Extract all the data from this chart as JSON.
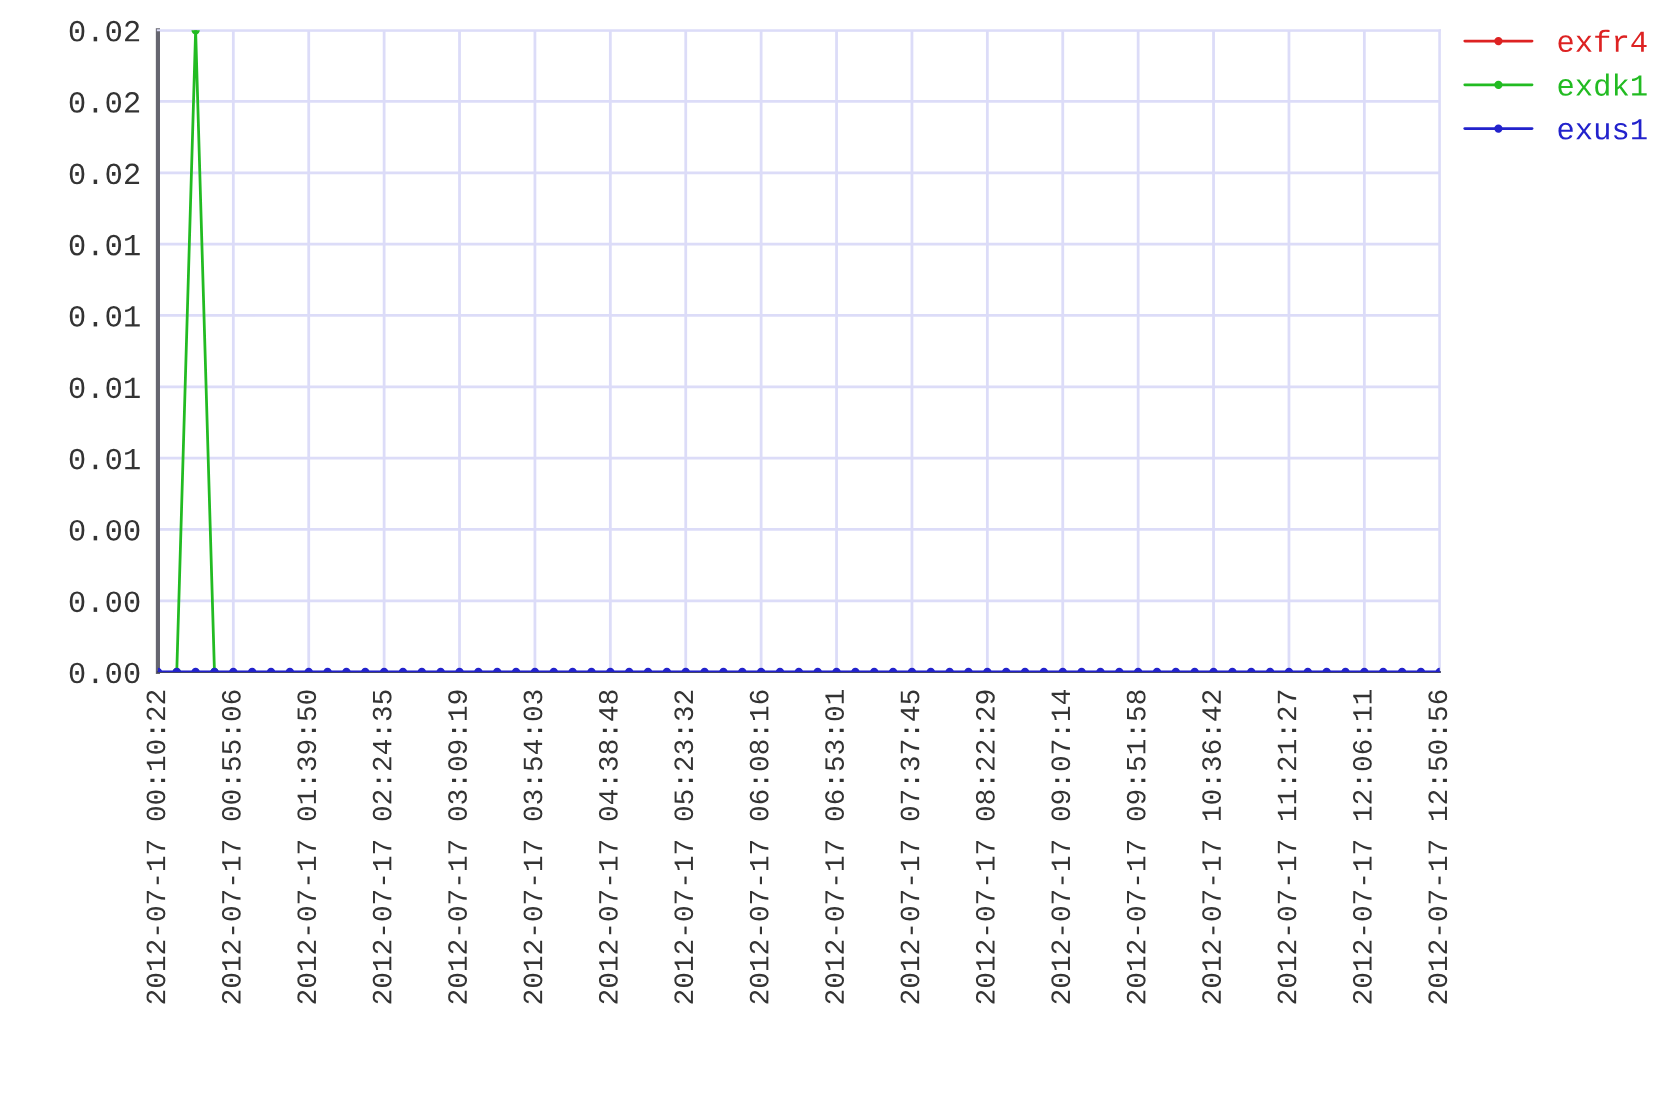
{
  "chart_data": {
    "type": "line",
    "categories": [
      "2012-07-17 00:10:22",
      null,
      null,
      null,
      "2012-07-17 00:55:06",
      null,
      null,
      null,
      "2012-07-17 01:39:50",
      null,
      null,
      null,
      "2012-07-17 02:24:35",
      null,
      null,
      null,
      "2012-07-17 03:09:19",
      null,
      null,
      null,
      "2012-07-17 03:54:03",
      null,
      null,
      null,
      "2012-07-17 04:38:48",
      null,
      null,
      null,
      "2012-07-17 05:23:32",
      null,
      null,
      null,
      "2012-07-17 06:08:16",
      null,
      null,
      null,
      "2012-07-17 06:53:01",
      null,
      null,
      null,
      "2012-07-17 07:37:45",
      null,
      null,
      null,
      "2012-07-17 08:22:29",
      null,
      null,
      null,
      "2012-07-17 09:07:14",
      null,
      null,
      null,
      "2012-07-17 09:51:58",
      null,
      null,
      null,
      "2012-07-17 10:36:42",
      null,
      null,
      null,
      "2012-07-17 11:21:27",
      null,
      null,
      null,
      "2012-07-17 12:06:11",
      null,
      null,
      null,
      "2012-07-17 12:50:56"
    ],
    "series": [
      {
        "name": "exfr4",
        "color": "#dd2222",
        "values": [
          null,
          null,
          null,
          null,
          null,
          null,
          null,
          null,
          null,
          null,
          null,
          null,
          null,
          null,
          null,
          null,
          null,
          null,
          null,
          null,
          null,
          null,
          null,
          null,
          null,
          null,
          null,
          null,
          null,
          null,
          null,
          null,
          null,
          null,
          null,
          null,
          null,
          null,
          null,
          null,
          null,
          null,
          null,
          null,
          null,
          null,
          null,
          null,
          null,
          null,
          null,
          null,
          null,
          null,
          null,
          null,
          null,
          null,
          null,
          null,
          null,
          null,
          null,
          null,
          null,
          null,
          null,
          null,
          null
        ]
      },
      {
        "name": "exdk1",
        "color": "#22bb22",
        "values": [
          null,
          0,
          0.021,
          0,
          null,
          null,
          null,
          null,
          null,
          null,
          null,
          null,
          null,
          null,
          null,
          null,
          null,
          null,
          null,
          null,
          null,
          null,
          null,
          null,
          null,
          null,
          null,
          null,
          null,
          null,
          null,
          null,
          null,
          null,
          null,
          null,
          null,
          null,
          null,
          null,
          null,
          null,
          null,
          null,
          null,
          null,
          null,
          null,
          null,
          null,
          null,
          null,
          null,
          null,
          null,
          null,
          null,
          null,
          null,
          null,
          null,
          null,
          null,
          null,
          null,
          null,
          null,
          null,
          null
        ]
      },
      {
        "name": "exus1",
        "color": "#2222cc",
        "values": [
          0,
          0,
          0,
          0,
          0,
          0,
          0,
          0,
          0,
          0,
          0,
          0,
          0,
          0,
          0,
          0,
          0,
          0,
          0,
          0,
          0,
          0,
          0,
          0,
          0,
          0,
          0,
          0,
          0,
          0,
          0,
          0,
          0,
          0,
          0,
          0,
          0,
          0,
          0,
          0,
          0,
          0,
          0,
          0,
          0,
          0,
          0,
          0,
          0,
          0,
          0,
          0,
          0,
          0,
          0,
          0,
          0,
          0,
          0,
          0,
          0,
          0,
          0,
          0,
          0,
          0,
          0,
          0,
          0
        ]
      }
    ],
    "ylim": [
      0,
      0.021
    ],
    "yticks": [
      {
        "value": 0,
        "label": "0.00"
      },
      {
        "value": 0.00233,
        "label": "0.00"
      },
      {
        "value": 0.00467,
        "label": "0.00"
      },
      {
        "value": 0.007,
        "label": "0.01"
      },
      {
        "value": 0.00933,
        "label": "0.01"
      },
      {
        "value": 0.01167,
        "label": "0.01"
      },
      {
        "value": 0.014,
        "label": "0.01"
      },
      {
        "value": 0.01633,
        "label": "0.02"
      },
      {
        "value": 0.01867,
        "label": "0.02"
      },
      {
        "value": 0.021,
        "label": "0.02"
      }
    ],
    "grid": true,
    "legend": "top right",
    "marker": "circle",
    "line_style": "solid"
  }
}
